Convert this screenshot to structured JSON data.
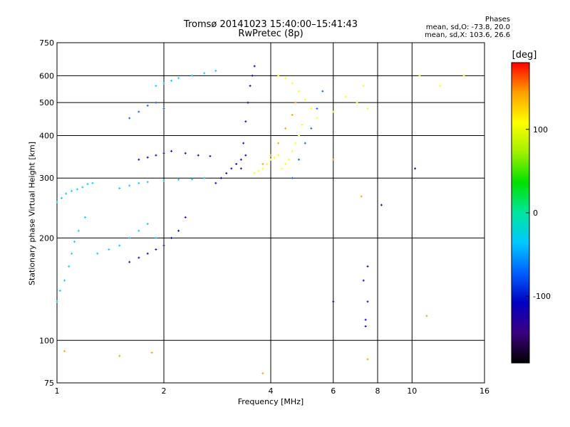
{
  "title_line1": "Tromsø 20141023 15:40:00–15:41:43",
  "title_line2": "RwPretec (8p)",
  "stats": {
    "heading": "Phases",
    "line_o": "mean, sd,O: -73.8, 20.0",
    "line_x": "mean, sd,X: 103.6, 26.6"
  },
  "colorbar": {
    "label": "[deg]",
    "range": [
      -180,
      180
    ],
    "ticks": [
      100,
      0,
      -100
    ],
    "colormap": [
      "#000000",
      "#3c0080",
      "#0000c0",
      "#0060ff",
      "#00c8ff",
      "#00e6a0",
      "#00e000",
      "#a0f000",
      "#ffff00",
      "#ffa000",
      "#ff0000"
    ]
  },
  "chart_data": {
    "type": "scatter",
    "title": "Tromsø 20141023 15:40:00–15:41:43 RwPretec (8p)",
    "xlabel": "Frequency [MHz]",
    "ylabel": "Stationary phase Virtual Height [km]",
    "x_scale": "log",
    "y_scale": "log",
    "xlim": [
      1,
      16
    ],
    "ylim": [
      75,
      750
    ],
    "xticks": [
      1,
      2,
      4,
      6,
      8,
      10,
      16
    ],
    "yticks": [
      75,
      100,
      200,
      300,
      400,
      500,
      600,
      750
    ],
    "grid": true,
    "color_variable": "phase (deg)",
    "series": [
      {
        "x": [
          1.0,
          1.02,
          1.05,
          1.08,
          1.1,
          1.12,
          1.15,
          1.2
        ],
        "y": [
          130,
          140,
          150,
          165,
          180,
          195,
          210,
          230
        ],
        "phase": -40
      },
      {
        "x": [
          1.0,
          1.03,
          1.06,
          1.1,
          1.14,
          1.18,
          1.22,
          1.26
        ],
        "y": [
          255,
          262,
          270,
          275,
          278,
          282,
          288,
          290
        ],
        "phase": -35
      },
      {
        "x": [
          1.3,
          1.4,
          1.5,
          1.6,
          1.7,
          1.8,
          1.9,
          2.0
        ],
        "y": [
          180,
          185,
          190,
          200,
          210,
          220,
          200,
          190
        ],
        "phase": -50
      },
      {
        "x": [
          1.6,
          1.7,
          1.8,
          1.9,
          2.0,
          2.1,
          2.2,
          2.3
        ],
        "y": [
          170,
          175,
          180,
          185,
          190,
          200,
          210,
          230
        ],
        "phase": -110
      },
      {
        "x": [
          1.5,
          1.6,
          1.7,
          1.8,
          2.0,
          2.2,
          2.4,
          2.6
        ],
        "y": [
          280,
          285,
          290,
          292,
          295,
          297,
          298,
          300
        ],
        "phase": -45
      },
      {
        "x": [
          1.7,
          1.8,
          1.9,
          2.0,
          2.1,
          2.3,
          2.5,
          2.7
        ],
        "y": [
          340,
          345,
          350,
          355,
          360,
          355,
          350,
          348
        ],
        "phase": -110
      },
      {
        "x": [
          1.6,
          1.7,
          1.8,
          1.9,
          2.0
        ],
        "y": [
          450,
          470,
          490,
          500,
          480
        ],
        "phase": -70
      },
      {
        "x": [
          1.9,
          2.0,
          2.1,
          2.2,
          2.4,
          2.6,
          2.8
        ],
        "y": [
          560,
          570,
          580,
          590,
          600,
          610,
          620
        ],
        "phase": -40
      },
      {
        "x": [
          2.8,
          2.9,
          3.0,
          3.1,
          3.2,
          3.3,
          3.4
        ],
        "y": [
          290,
          300,
          310,
          320,
          330,
          340,
          350
        ],
        "phase": -120
      },
      {
        "x": [
          3.3,
          3.35,
          3.4,
          3.45,
          3.5,
          3.55,
          3.6
        ],
        "y": [
          320,
          380,
          440,
          500,
          560,
          600,
          640
        ],
        "phase": -110
      },
      {
        "x": [
          3.6,
          3.7,
          3.8,
          3.9,
          4.0,
          4.1,
          4.2
        ],
        "y": [
          310,
          315,
          320,
          330,
          340,
          345,
          350
        ],
        "phase": 120
      },
      {
        "x": [
          3.8,
          4.0,
          4.2,
          4.4,
          4.6,
          4.7
        ],
        "y": [
          330,
          350,
          380,
          420,
          460,
          500
        ],
        "phase": 140
      },
      {
        "x": [
          4.3,
          4.4,
          4.5,
          4.6,
          4.7,
          4.8,
          4.9
        ],
        "y": [
          320,
          330,
          340,
          360,
          380,
          400,
          430
        ],
        "phase": 95
      },
      {
        "x": [
          4.2,
          4.4,
          4.6,
          4.8,
          5.0,
          5.2,
          5.4
        ],
        "y": [
          600,
          590,
          570,
          540,
          510,
          480,
          450
        ],
        "phase": 90
      },
      {
        "x": [
          4.6,
          4.8,
          5.0,
          5.2,
          5.4,
          5.6
        ],
        "y": [
          300,
          340,
          380,
          420,
          480,
          540
        ],
        "phase": -90
      },
      {
        "x": [
          6.0,
          6.5,
          7.0,
          7.3,
          7.5,
          10.5,
          12.0,
          14.0
        ],
        "y": [
          470,
          520,
          500,
          560,
          480,
          600,
          560,
          600
        ],
        "phase": 110
      },
      {
        "x": [
          6.0,
          7.3,
          7.5,
          8.2,
          10.2,
          7.4,
          7.4,
          7.5
        ],
        "y": [
          130,
          150,
          165,
          250,
          320,
          110,
          115,
          130
        ],
        "phase": -120
      },
      {
        "x": [
          1.05,
          1.5,
          1.85,
          3.8,
          7.5,
          11.0,
          7.2,
          6.0
        ],
        "y": [
          93,
          90,
          92,
          80,
          88,
          118,
          265,
          340
        ],
        "phase": 150
      }
    ]
  }
}
